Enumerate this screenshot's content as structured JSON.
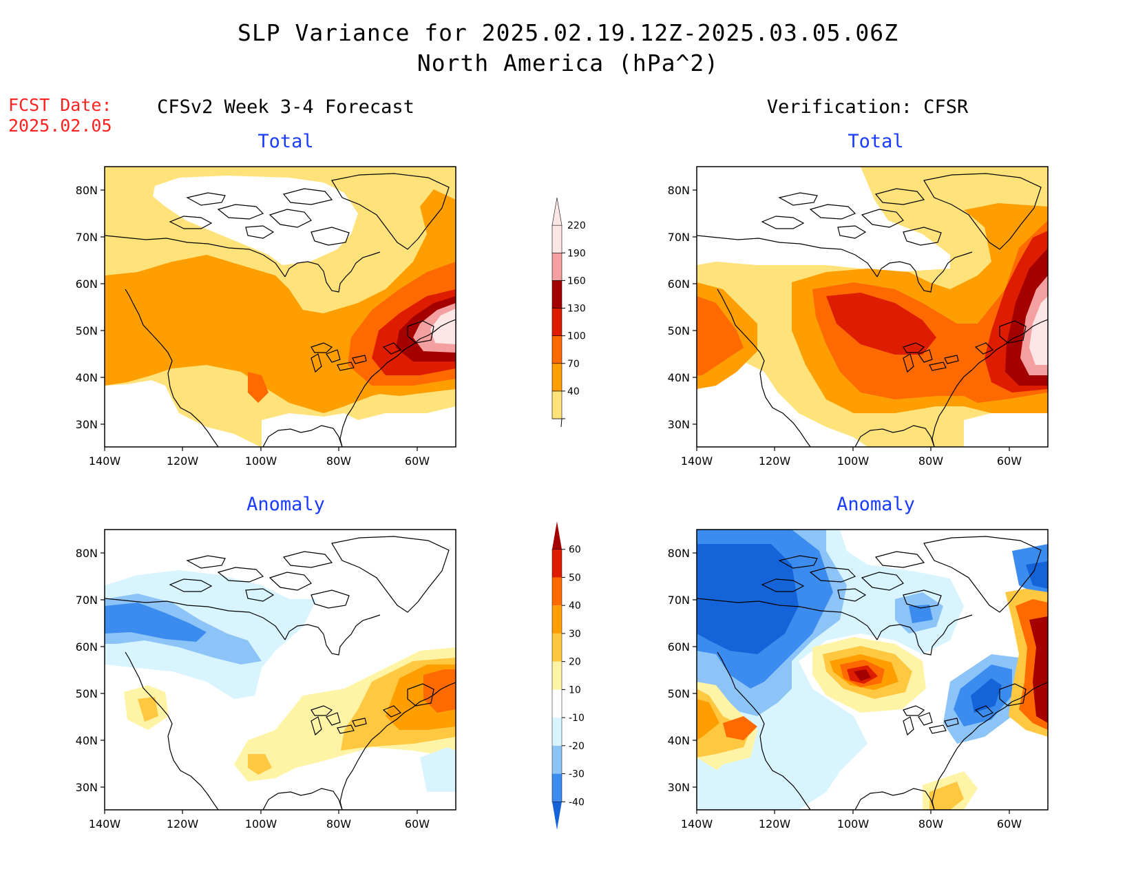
{
  "title_line1": "SLP Variance for 2025.02.19.12Z-2025.03.05.06Z",
  "title_line2": "North America (hPa^2)",
  "fcst_label": "FCST Date:",
  "fcst_date": "2025.02.05",
  "left_header": "CFSv2 Week 3-4 Forecast",
  "right_header": "Verification: CFSR",
  "panel_titles": {
    "top_left": "Total",
    "top_right": "Total",
    "bottom_left": "Anomaly",
    "bottom_right": "Anomaly"
  },
  "lat_labels": [
    "80N",
    "70N",
    "60N",
    "50N",
    "40N",
    "30N"
  ],
  "lon_labels": [
    "140W",
    "120W",
    "100W",
    "80W",
    "60W"
  ],
  "total_colorbar": {
    "labels": [
      "40",
      "70",
      "100",
      "130",
      "160",
      "190",
      "220"
    ],
    "colors": [
      "#ffe27a",
      "#ff9e00",
      "#ff6a00",
      "#dd1c00",
      "#a50000",
      "#f4a0a0",
      "#fde6e6"
    ]
  },
  "anomaly_colorbar": {
    "labels": [
      "-40",
      "-30",
      "-20",
      "-10",
      "10",
      "20",
      "30",
      "40",
      "50",
      "60"
    ],
    "colors": [
      "#1463d8",
      "#3c8cf0",
      "#8cc4f8",
      "#d8f4ff",
      "#ffffff",
      "#fff3a6",
      "#ffc840",
      "#ff9e00",
      "#ff6a00",
      "#dd1c00",
      "#a50000"
    ]
  },
  "colors": {
    "title_red": "#ff2020",
    "panel_title_blue": "#1a3cff"
  }
}
